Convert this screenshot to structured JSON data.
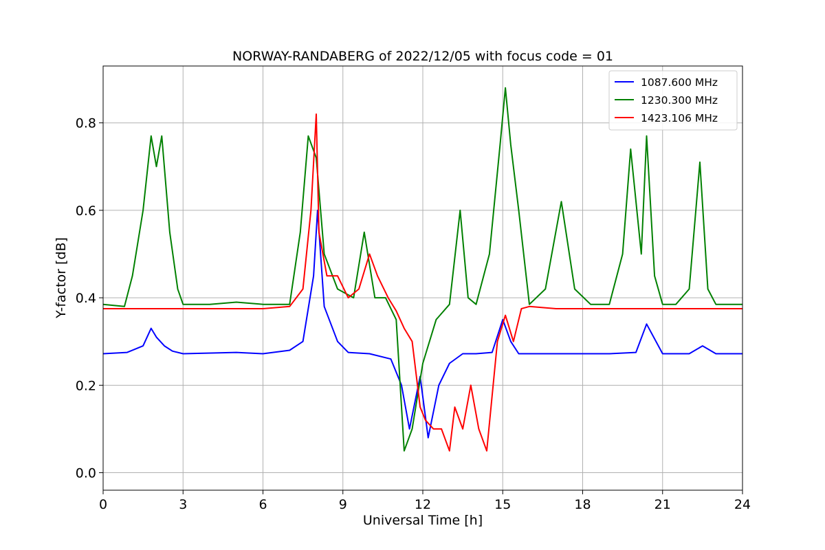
{
  "chart_data": {
    "type": "line",
    "title": "NORWAY-RANDABERG of 2022/12/05 with focus code = 01",
    "xlabel": "Universal Time [h]",
    "ylabel": "Y-factor [dB]",
    "xlim": [
      0,
      24
    ],
    "ylim": [
      -0.04,
      0.93
    ],
    "xticks": [
      0,
      3,
      6,
      9,
      12,
      15,
      18,
      21,
      24
    ],
    "xtick_labels": [
      "0",
      "3",
      "6",
      "9",
      "12",
      "15",
      "18",
      "21",
      "24"
    ],
    "yticks": [
      0.0,
      0.2,
      0.4,
      0.6,
      0.8
    ],
    "ytick_labels": [
      "0.0",
      "0.2",
      "0.4",
      "0.6",
      "0.8"
    ],
    "grid": true,
    "legend_position": "top-right",
    "series": [
      {
        "name": "1087.600 MHz",
        "color": "#0000ff",
        "x": [
          0,
          0.9,
          1.5,
          1.8,
          2.0,
          2.3,
          2.6,
          3.0,
          5.0,
          6.0,
          7.0,
          7.5,
          7.9,
          8.05,
          8.3,
          8.8,
          9.2,
          10.0,
          10.8,
          11.2,
          11.5,
          11.9,
          12.2,
          12.6,
          13.0,
          13.5,
          14.0,
          14.6,
          15.0,
          15.3,
          15.6,
          16.0,
          18.0,
          19.0,
          20.0,
          20.4,
          21.0,
          22.0,
          22.5,
          23.0,
          24.0
        ],
        "values": [
          0.272,
          0.275,
          0.29,
          0.33,
          0.31,
          0.29,
          0.278,
          0.272,
          0.275,
          0.272,
          0.28,
          0.3,
          0.45,
          0.6,
          0.38,
          0.3,
          0.275,
          0.272,
          0.26,
          0.2,
          0.1,
          0.22,
          0.08,
          0.2,
          0.25,
          0.272,
          0.272,
          0.275,
          0.35,
          0.3,
          0.272,
          0.272,
          0.272,
          0.272,
          0.275,
          0.34,
          0.272,
          0.272,
          0.29,
          0.272,
          0.272
        ]
      },
      {
        "name": "1230.300 MHz",
        "color": "#008000",
        "x": [
          0,
          0.8,
          1.1,
          1.5,
          1.8,
          2.0,
          2.2,
          2.5,
          2.8,
          3.0,
          4.0,
          5.0,
          6.0,
          7.0,
          7.4,
          7.7,
          8.0,
          8.3,
          8.8,
          9.4,
          9.8,
          10.2,
          10.6,
          11.0,
          11.3,
          11.6,
          12.0,
          12.5,
          13.0,
          13.4,
          13.7,
          14.0,
          14.5,
          14.9,
          15.1,
          15.3,
          15.6,
          16.0,
          16.6,
          17.2,
          17.7,
          18.3,
          19.0,
          19.5,
          19.8,
          20.2,
          20.4,
          20.7,
          21.0,
          21.5,
          22.0,
          22.4,
          22.7,
          23.0,
          24.0
        ],
        "values": [
          0.385,
          0.38,
          0.45,
          0.6,
          0.77,
          0.7,
          0.77,
          0.55,
          0.42,
          0.385,
          0.385,
          0.39,
          0.385,
          0.385,
          0.55,
          0.77,
          0.72,
          0.5,
          0.42,
          0.4,
          0.55,
          0.4,
          0.4,
          0.35,
          0.05,
          0.1,
          0.25,
          0.35,
          0.385,
          0.6,
          0.4,
          0.385,
          0.5,
          0.75,
          0.88,
          0.75,
          0.6,
          0.385,
          0.42,
          0.62,
          0.42,
          0.385,
          0.385,
          0.5,
          0.74,
          0.5,
          0.77,
          0.45,
          0.385,
          0.385,
          0.42,
          0.71,
          0.42,
          0.385,
          0.385
        ]
      },
      {
        "name": "1423.106 MHz",
        "color": "#ff0000",
        "x": [
          0,
          1.0,
          2.0,
          3.0,
          4.0,
          5.0,
          6.0,
          7.0,
          7.5,
          7.8,
          8.0,
          8.1,
          8.4,
          8.8,
          9.2,
          9.6,
          10.0,
          10.3,
          10.7,
          11.0,
          11.3,
          11.6,
          11.9,
          12.1,
          12.4,
          12.7,
          13.0,
          13.2,
          13.5,
          13.8,
          14.1,
          14.4,
          14.8,
          15.1,
          15.4,
          15.7,
          16.0,
          17.0,
          18.0,
          19.0,
          20.0,
          21.0,
          22.0,
          23.0,
          24.0
        ],
        "values": [
          0.375,
          0.375,
          0.375,
          0.375,
          0.375,
          0.375,
          0.375,
          0.38,
          0.42,
          0.6,
          0.82,
          0.55,
          0.45,
          0.45,
          0.4,
          0.42,
          0.5,
          0.45,
          0.4,
          0.37,
          0.33,
          0.3,
          0.15,
          0.12,
          0.1,
          0.1,
          0.05,
          0.15,
          0.1,
          0.2,
          0.1,
          0.05,
          0.3,
          0.36,
          0.3,
          0.375,
          0.38,
          0.375,
          0.375,
          0.375,
          0.375,
          0.375,
          0.375,
          0.375,
          0.375
        ]
      }
    ]
  }
}
